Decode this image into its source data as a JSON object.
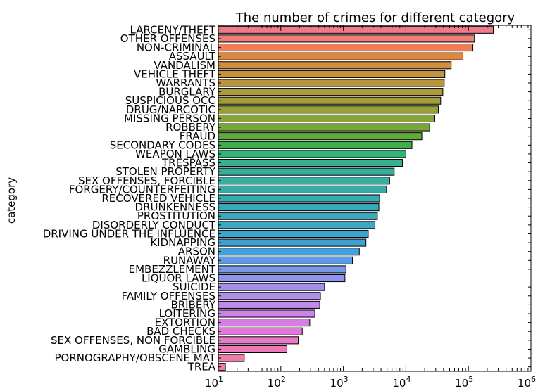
{
  "chart_data": {
    "type": "bar",
    "orientation": "horizontal",
    "title": "The number of crimes for different category",
    "xlabel": "",
    "ylabel": "category",
    "xscale": "log",
    "xlim": [
      10,
      1000000
    ],
    "xticks": [
      {
        "base": "10",
        "exp": "1"
      },
      {
        "base": "10",
        "exp": "2"
      },
      {
        "base": "10",
        "exp": "3"
      },
      {
        "base": "10",
        "exp": "4"
      },
      {
        "base": "10",
        "exp": "5"
      },
      {
        "base": "10",
        "exp": "6"
      }
    ],
    "grid": false,
    "categories": [
      "LARCENY/THEFT",
      "OTHER OFFENSES",
      "NON-CRIMINAL",
      "ASSAULT",
      "VANDALISM",
      "VEHICLE THEFT",
      "WARRANTS",
      "BURGLARY",
      "SUSPICIOUS OCC",
      "DRUG/NARCOTIC",
      "MISSING PERSON",
      "ROBBERY",
      "FRAUD",
      "SECONDARY CODES",
      "WEAPON LAWS",
      "TRESPASS",
      "STOLEN PROPERTY",
      "SEX OFFENSES, FORCIBLE",
      "FORGERY/COUNTERFEITING",
      "RECOVERED VEHICLE",
      "DRUNKENNESS",
      "PROSTITUTION",
      "DISORDERLY CONDUCT",
      "DRIVING UNDER THE INFLUENCE",
      "KIDNAPPING",
      "ARSON",
      "RUNAWAY",
      "EMBEZZLEMENT",
      "LIQUOR LAWS",
      "SUICIDE",
      "FAMILY OFFENSES",
      "BRIBERY",
      "LOITERING",
      "EXTORTION",
      "BAD CHECKS",
      "SEX OFFENSES, NON FORCIBLE",
      "GAMBLING",
      "PORNOGRAPHY/OBSCENE MAT",
      "TREA"
    ],
    "values": [
      250000,
      125000,
      118000,
      82000,
      53000,
      42000,
      41000,
      39000,
      36000,
      33000,
      29000,
      24000,
      18000,
      12500,
      10000,
      8800,
      6500,
      5500,
      4900,
      3800,
      3700,
      3500,
      3200,
      2500,
      2300,
      1800,
      1400,
      1100,
      1060,
      500,
      430,
      420,
      350,
      290,
      220,
      190,
      125,
      26,
      13
    ],
    "colors": [
      "#f0798c",
      "#ef7d78",
      "#ec8054",
      "#e0873f",
      "#d18e3e",
      "#c4933d",
      "#b9963b",
      "#ad9a3a",
      "#a39d39",
      "#979f39",
      "#88a339",
      "#76a739",
      "#5fab39",
      "#3fb049",
      "#35b277",
      "#36b08e",
      "#37af9a",
      "#38aea2",
      "#38aca9",
      "#39aab1",
      "#3aa9b8",
      "#3ba8bd",
      "#3ca6c3",
      "#3da4cb",
      "#3fa1d1",
      "#43a0d8",
      "#5b9ee6",
      "#7898e8",
      "#8c95e9",
      "#a190eb",
      "#b18eea",
      "#c08ae8",
      "#cc84e6",
      "#d77ee4",
      "#e278d9",
      "#e87ac9",
      "#ec79b9",
      "#ee7ca8",
      "#ef7e96"
    ]
  }
}
